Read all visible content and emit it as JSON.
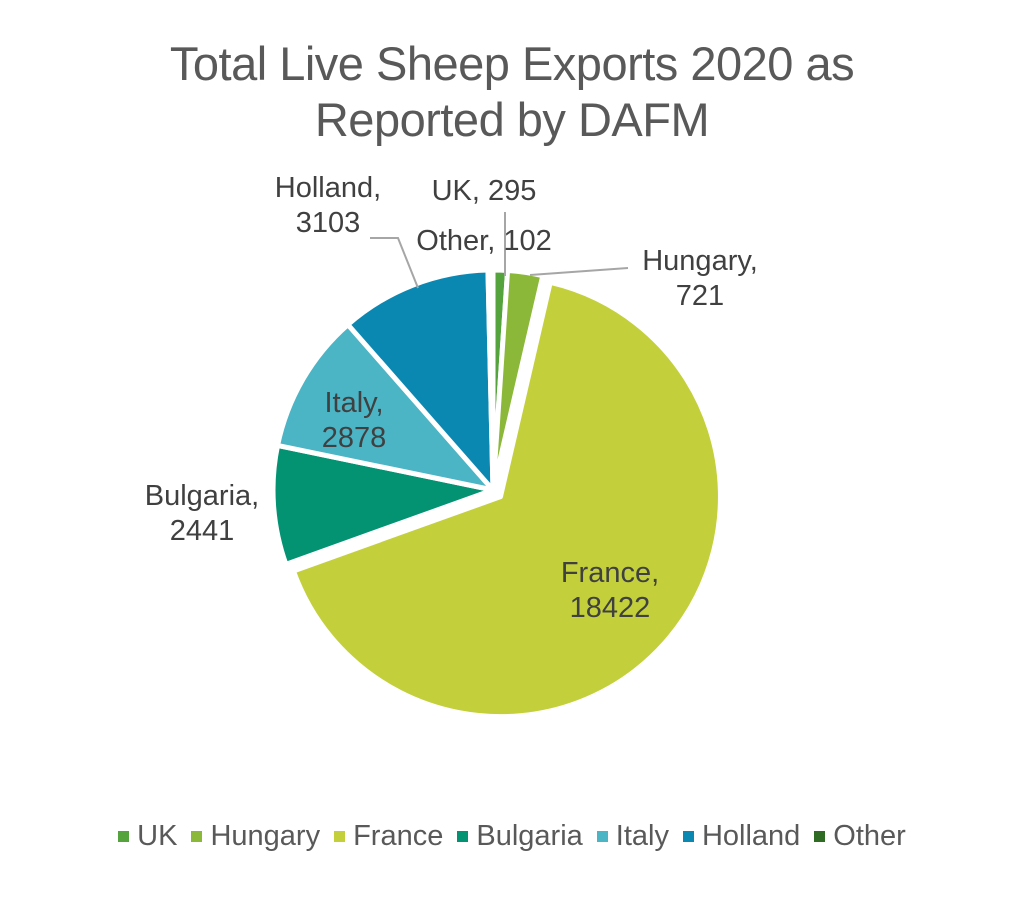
{
  "chart_data": {
    "type": "pie",
    "title_lines": [
      "Total Live Sheep Exports 2020 as",
      "Reported by DAFM"
    ],
    "title": "Total Live Sheep Exports 2020 as Reported by DAFM",
    "slices": [
      {
        "label": "UK",
        "value": 295,
        "color": "#54a33c",
        "data_label": "UK, 295"
      },
      {
        "label": "Hungary",
        "value": 721,
        "color": "#8bb838",
        "data_label": "Hungary, 721"
      },
      {
        "label": "France",
        "value": 18422,
        "color": "#c3d03b",
        "data_label": "France, 18422"
      },
      {
        "label": "Bulgaria",
        "value": 2441,
        "color": "#039373",
        "data_label": "Bulgaria, 2441"
      },
      {
        "label": "Italy",
        "value": 2878,
        "color": "#4bb4c5",
        "data_label": "Italy, 2878"
      },
      {
        "label": "Holland",
        "value": 3103,
        "color": "#0b88b2",
        "data_label": "Holland, 3103"
      },
      {
        "label": "Other",
        "value": 102,
        "color": "#2f6b23",
        "data_label": "Other, 102"
      }
    ],
    "start_angle": "12 o'clock",
    "direction": "clockwise",
    "exploded": [
      "France"
    ],
    "legend_position": "bottom"
  }
}
